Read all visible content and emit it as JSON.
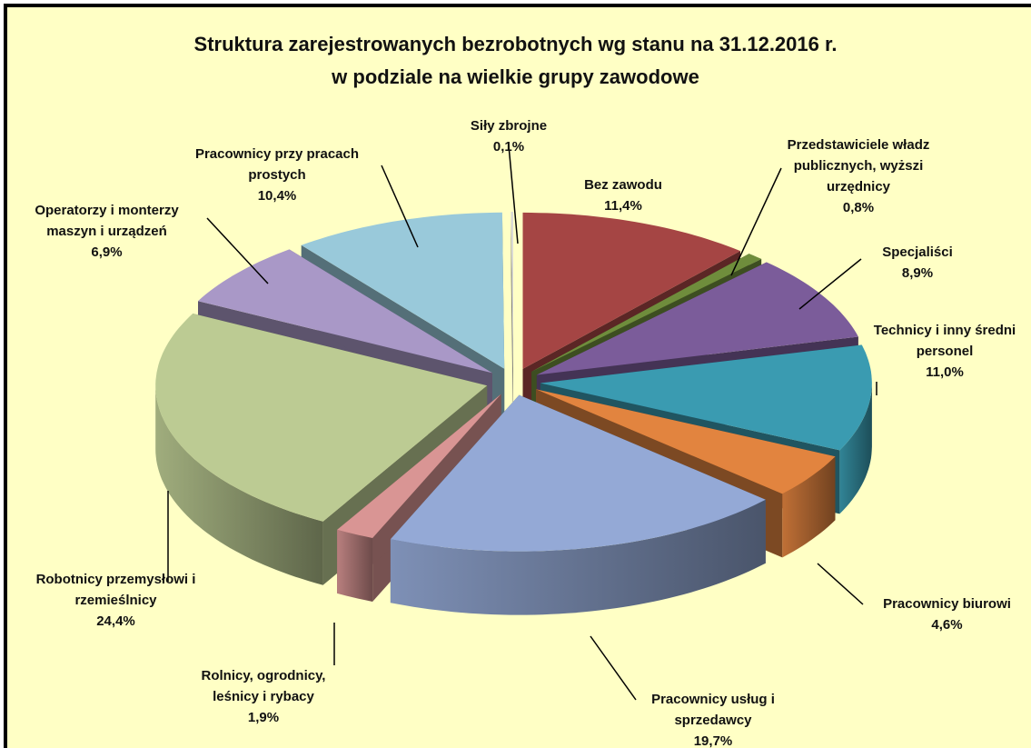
{
  "chart_data": {
    "type": "pie",
    "title": "Struktura zarejestrowanych bezrobotnych wg stanu na 31.12.2016 r.",
    "subtitle": "w podziale na wielkie grupy zawodowe",
    "categories": [
      "Bez zawodu",
      "Przedstawiciele władz publicznych, wyższi urzędnicy",
      "Specjaliści",
      "Technicy i inny średni personel",
      "Pracownicy biurowi",
      "Pracownicy usług i sprzedawcy",
      "Rolnicy, ogrodnicy, leśnicy i rybacy",
      "Robotnicy przemysłowi i rzemieślnicy",
      "Operatorzy i monterzy maszyn i urządzeń",
      "Pracownicy przy pracach prostych",
      "Siły zbrojne"
    ],
    "values": [
      11.4,
      0.8,
      8.9,
      11.0,
      4.6,
      19.7,
      1.9,
      24.4,
      6.9,
      10.4,
      0.1
    ],
    "value_labels": [
      "11,4%",
      "0,8%",
      "8,9%",
      "11,0%",
      "4,6%",
      "19,7%",
      "1,9%",
      "24,4%",
      "6,9%",
      "10,4%",
      "0,1%"
    ],
    "colors": [
      "#a54544",
      "#6f8d3c",
      "#7b5c9a",
      "#3a9bb1",
      "#e2843f",
      "#94a9d6",
      "#d99594",
      "#bccb93",
      "#a998c7",
      "#99c9da",
      "#d8d8d8"
    ]
  }
}
